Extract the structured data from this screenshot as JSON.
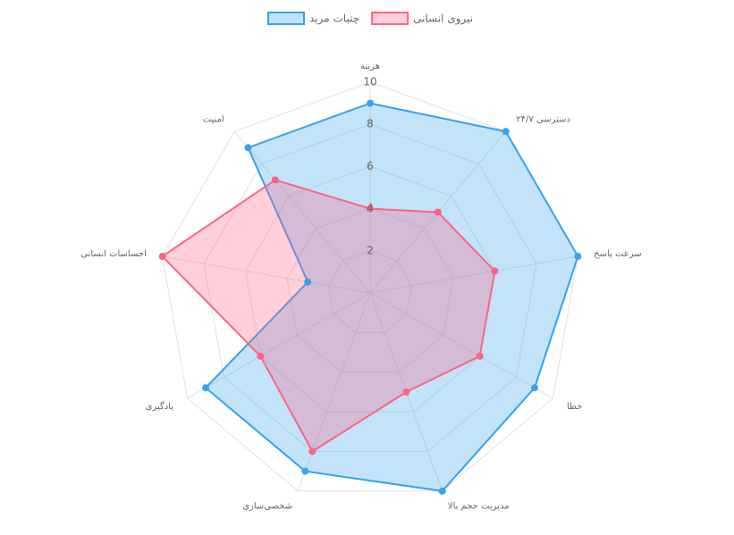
{
  "chart_data": {
    "type": "radar",
    "categories": [
      "هزینه",
      "دسترسی ۲۴/۷",
      "سرعت پاسخ",
      "خطا",
      "مدیریت حجم بالا",
      "شخصی‌سازی",
      "یادگیری",
      "احساسات انسانی",
      "امنیت"
    ],
    "series": [
      {
        "name": "چتبات مرید",
        "color": "#36a2eb",
        "values": [
          9,
          10,
          10,
          9,
          10,
          9,
          9,
          3,
          9
        ]
      },
      {
        "name": "نیروی انسانی",
        "color": "#ff6384",
        "values": [
          4,
          5,
          6,
          6,
          5,
          8,
          6,
          10,
          7
        ]
      }
    ],
    "rlim": [
      0,
      10
    ],
    "rticks": [
      2,
      4,
      6,
      8,
      10
    ],
    "grid": true,
    "legend": "top"
  }
}
